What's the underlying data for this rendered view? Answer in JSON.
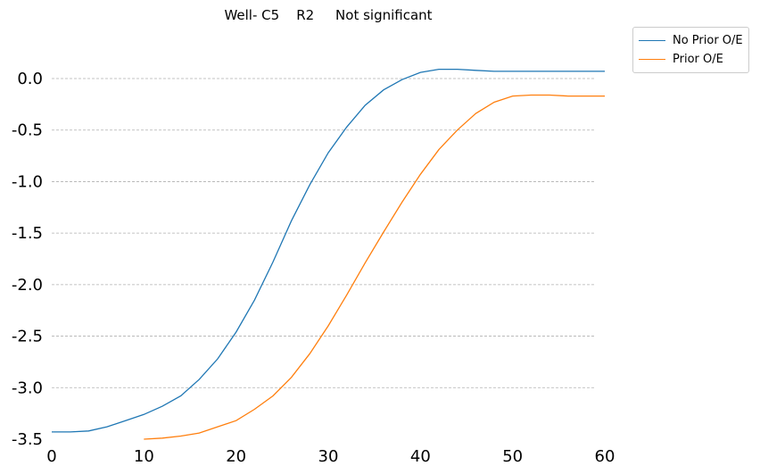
{
  "chart_data": {
    "type": "line",
    "title": "Well- C5    R2     Not significant",
    "xlabel": "",
    "ylabel": "",
    "xlim": [
      0,
      60
    ],
    "ylim": [
      -3.5,
      0.35
    ],
    "xticks": [
      0,
      10,
      20,
      30,
      40,
      50,
      60
    ],
    "yticks": [
      0.0,
      -0.5,
      -1.0,
      -1.5,
      -2.0,
      -2.5,
      -3.0,
      -3.5
    ],
    "xtick_labels": [
      "0",
      "10",
      "20",
      "30",
      "40",
      "50",
      "60"
    ],
    "ytick_labels": [
      "0.0",
      "-0.5",
      "-1.0",
      "-1.5",
      "-2.0",
      "-2.5",
      "-3.0",
      "-3.5"
    ],
    "grid": "horizontal dashed",
    "legend_position": "outside-top-right",
    "series": [
      {
        "name": "No Prior O/E",
        "color": "#1f77b4",
        "x": [
          0,
          2,
          4,
          6,
          8,
          10,
          12,
          14,
          16,
          18,
          20,
          22,
          24,
          26,
          28,
          30,
          32,
          34,
          36,
          38,
          40,
          42,
          44,
          46,
          48,
          50,
          52,
          54,
          56,
          58,
          60
        ],
        "y": [
          -3.43,
          -3.43,
          -3.42,
          -3.38,
          -3.32,
          -3.26,
          -3.18,
          -3.08,
          -2.92,
          -2.72,
          -2.46,
          -2.15,
          -1.78,
          -1.38,
          -1.03,
          -0.72,
          -0.47,
          -0.26,
          -0.11,
          -0.01,
          0.06,
          0.09,
          0.09,
          0.08,
          0.07,
          0.07,
          0.07,
          0.07,
          0.07,
          0.07,
          0.07
        ]
      },
      {
        "name": "Prior O/E",
        "color": "#ff7f0e",
        "x": [
          10,
          12,
          14,
          16,
          18,
          20,
          22,
          24,
          26,
          28,
          30,
          32,
          34,
          36,
          38,
          40,
          42,
          44,
          46,
          48,
          50,
          52,
          54,
          56,
          58,
          60
        ],
        "y": [
          -3.5,
          -3.49,
          -3.47,
          -3.44,
          -3.38,
          -3.32,
          -3.21,
          -3.08,
          -2.9,
          -2.67,
          -2.4,
          -2.1,
          -1.79,
          -1.49,
          -1.2,
          -0.93,
          -0.69,
          -0.5,
          -0.34,
          -0.23,
          -0.17,
          -0.16,
          -0.16,
          -0.17,
          -0.17,
          -0.17
        ]
      }
    ]
  }
}
